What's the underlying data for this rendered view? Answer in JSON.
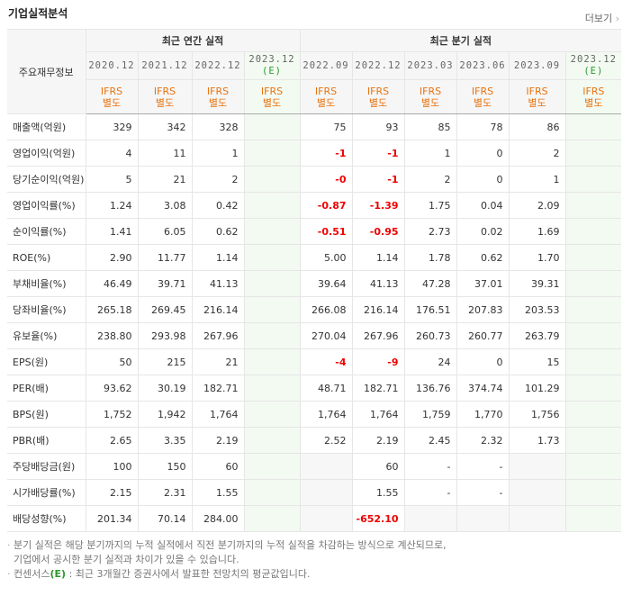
{
  "title": "기업실적분석",
  "more": "더보기",
  "table": {
    "corner": "주요재무정보",
    "groups": [
      "최근 연간 실적",
      "최근 분기 실적"
    ],
    "columns": [
      {
        "period": "2020.12",
        "basis": "IFRS",
        "scope": "별도"
      },
      {
        "period": "2021.12",
        "basis": "IFRS",
        "scope": "별도"
      },
      {
        "period": "2022.12",
        "basis": "IFRS",
        "scope": "별도"
      },
      {
        "period": "2023.12",
        "estimate": "(E)",
        "basis": "IFRS",
        "scope": "별도"
      },
      {
        "period": "2022.09",
        "basis": "IFRS",
        "scope": "별도"
      },
      {
        "period": "2022.12",
        "basis": "IFRS",
        "scope": "별도"
      },
      {
        "period": "2023.03",
        "basis": "IFRS",
        "scope": "별도"
      },
      {
        "period": "2023.06",
        "basis": "IFRS",
        "scope": "별도"
      },
      {
        "period": "2023.09",
        "basis": "IFRS",
        "scope": "별도"
      },
      {
        "period": "2023.12",
        "estimate": "(E)",
        "basis": "IFRS",
        "scope": "별도"
      }
    ],
    "rows": [
      {
        "label": "매출액(억원)",
        "values": [
          "329",
          "342",
          "328",
          null,
          "75",
          "93",
          "85",
          "78",
          "86",
          null
        ]
      },
      {
        "label": "영업이익(억원)",
        "values": [
          "4",
          "11",
          "1",
          null,
          "-1",
          "-1",
          "1",
          "0",
          "2",
          null
        ]
      },
      {
        "label": "당기순이익(억원)",
        "values": [
          "5",
          "21",
          "2",
          null,
          "-0",
          "-1",
          "2",
          "0",
          "1",
          null
        ]
      },
      {
        "label": "영업이익률(%)",
        "values": [
          "1.24",
          "3.08",
          "0.42",
          null,
          "-0.87",
          "-1.39",
          "1.75",
          "0.04",
          "2.09",
          null
        ]
      },
      {
        "label": "순이익률(%)",
        "values": [
          "1.41",
          "6.05",
          "0.62",
          null,
          "-0.51",
          "-0.95",
          "2.73",
          "0.02",
          "1.69",
          null
        ]
      },
      {
        "label": "ROE(%)",
        "values": [
          "2.90",
          "11.77",
          "1.14",
          null,
          "5.00",
          "1.14",
          "1.78",
          "0.62",
          "1.70",
          null
        ]
      },
      {
        "label": "부채비율(%)",
        "values": [
          "46.49",
          "39.71",
          "41.13",
          null,
          "39.64",
          "41.13",
          "47.28",
          "37.01",
          "39.31",
          null
        ]
      },
      {
        "label": "당좌비율(%)",
        "values": [
          "265.18",
          "269.45",
          "216.14",
          null,
          "266.08",
          "216.14",
          "176.51",
          "207.83",
          "203.53",
          null
        ]
      },
      {
        "label": "유보율(%)",
        "values": [
          "238.80",
          "293.98",
          "267.96",
          null,
          "270.04",
          "267.96",
          "260.73",
          "260.77",
          "263.79",
          null
        ]
      },
      {
        "label": "EPS(원)",
        "values": [
          "50",
          "215",
          "21",
          null,
          "-4",
          "-9",
          "24",
          "0",
          "15",
          null
        ]
      },
      {
        "label": "PER(배)",
        "values": [
          "93.62",
          "30.19",
          "182.71",
          null,
          "48.71",
          "182.71",
          "136.76",
          "374.74",
          "101.29",
          null
        ]
      },
      {
        "label": "BPS(원)",
        "values": [
          "1,752",
          "1,942",
          "1,764",
          null,
          "1,764",
          "1,764",
          "1,759",
          "1,770",
          "1,756",
          null
        ]
      },
      {
        "label": "PBR(배)",
        "values": [
          "2.65",
          "3.35",
          "2.19",
          null,
          "2.52",
          "2.19",
          "2.45",
          "2.32",
          "1.73",
          null
        ]
      },
      {
        "label": "주당배당금(원)",
        "values": [
          "100",
          "150",
          "60",
          null,
          null,
          "60",
          "-",
          "-",
          null,
          null
        ]
      },
      {
        "label": "시가배당률(%)",
        "values": [
          "2.15",
          "2.31",
          "1.55",
          null,
          null,
          "1.55",
          "-",
          "-",
          null,
          null
        ]
      },
      {
        "label": "배당성향(%)",
        "values": [
          "201.34",
          "70.14",
          "284.00",
          null,
          null,
          "-652.10",
          null,
          null,
          null,
          null
        ]
      }
    ]
  },
  "notes": [
    "분기 실적은 해당 분기까지의 누적 실적에서 직전 분기까지의 누적 실적을 차감하는 방식으로 계산되므로,",
    "기업에서 공시한 분기 실적과 차이가 있을 수 있습니다."
  ],
  "consensus": {
    "label": "컨센서스",
    "mark": "(E)",
    "text": ": 최근 3개월간 증권사에서 발표한 전망치의 평균값입니다."
  }
}
